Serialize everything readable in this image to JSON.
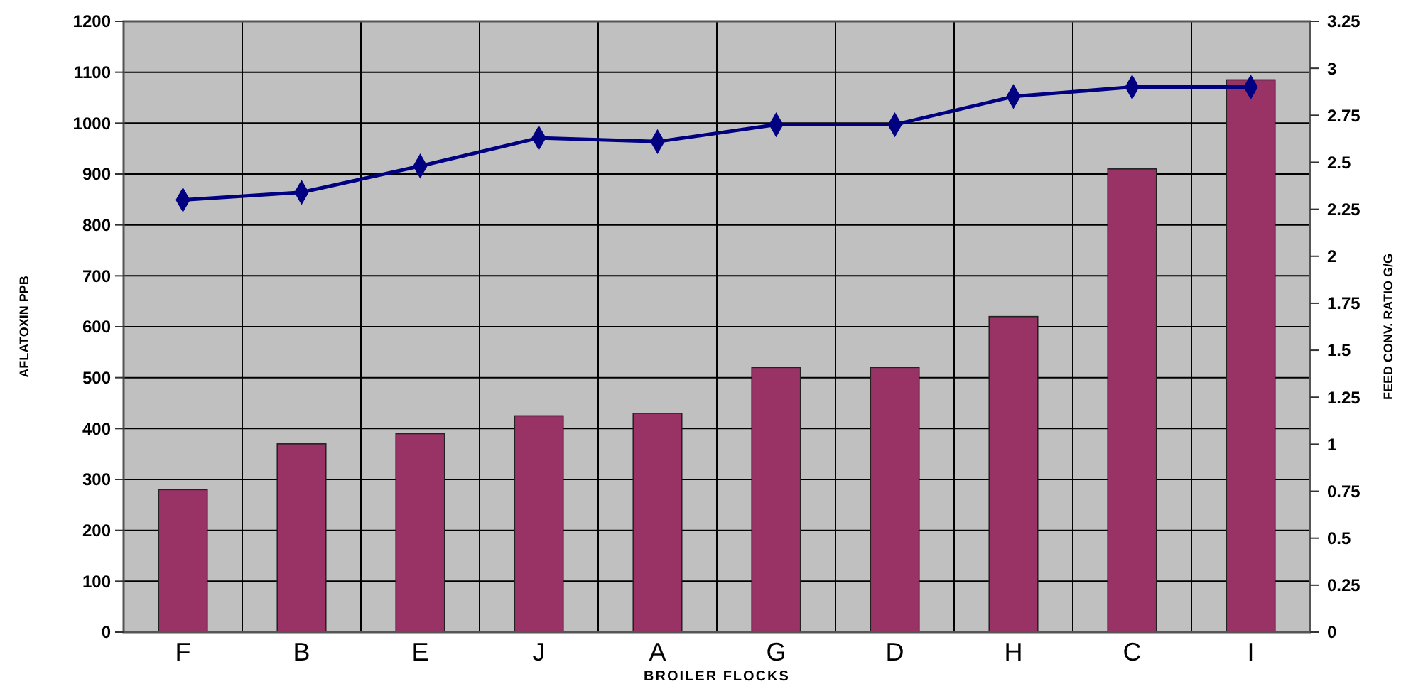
{
  "chart_data": {
    "type": "bar",
    "xlabel": "BROILER FLOCKS",
    "ylabel": "AFLATOXIN PPB",
    "y2label": "FEED CONV. RATIO G/G",
    "categories": [
      "F",
      "B",
      "E",
      "J",
      "A",
      "G",
      "D",
      "H",
      "C",
      "I"
    ],
    "series": [
      {
        "color": "#993366",
        "values": [
          280,
          370,
          390,
          425,
          430,
          520,
          520,
          620,
          910,
          1085
        ]
      },
      {
        "type": "line",
        "axis": "y2",
        "color": "#000080",
        "marker": "diamond",
        "values": [
          2.3,
          2.34,
          2.48,
          2.63,
          2.61,
          2.7,
          2.7,
          2.85,
          2.9,
          2.9
        ]
      }
    ],
    "ylim": [
      0,
      1200
    ],
    "yticks": [
      0,
      100,
      200,
      300,
      400,
      500,
      600,
      700,
      800,
      900,
      1000,
      1100,
      1200
    ],
    "y2lim": [
      0,
      3.25
    ],
    "y2ticks": [
      0,
      0.25,
      0.5,
      0.75,
      1,
      1.25,
      1.5,
      1.75,
      2,
      2.25,
      2.5,
      2.75,
      3,
      3.25
    ],
    "grid": true
  }
}
